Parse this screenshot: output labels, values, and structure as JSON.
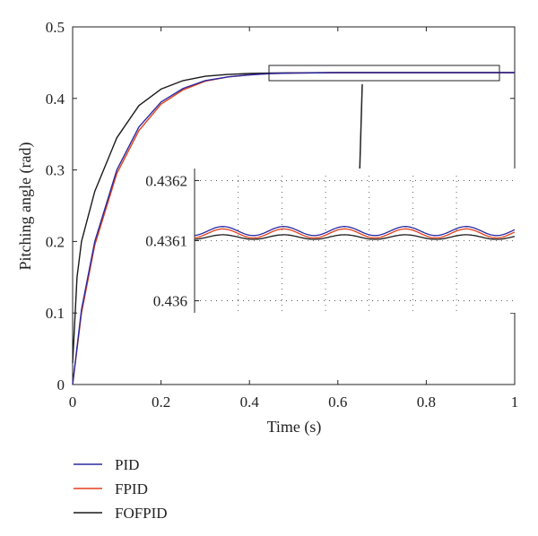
{
  "chart_data": {
    "type": "line",
    "xlabel": "Time (s)",
    "ylabel": "Pitching angle (rad)",
    "xlim": [
      0,
      1
    ],
    "ylim": [
      0,
      0.5
    ],
    "xticks": [
      "0",
      "0.2",
      "0.4",
      "0.6",
      "0.8",
      "1"
    ],
    "yticks": [
      "0",
      "0.1",
      "0.2",
      "0.3",
      "0.4",
      "0.5"
    ],
    "grid": false,
    "legend_position": "below the plot, left",
    "series": [
      {
        "name": "PID",
        "color": "#2a2aa0",
        "x": [
          0,
          0.02,
          0.05,
          0.1,
          0.15,
          0.2,
          0.25,
          0.3,
          0.35,
          0.4,
          0.45,
          0.5,
          0.6,
          0.7,
          0.8,
          0.9,
          1.0
        ],
        "y": [
          0,
          0.105,
          0.2,
          0.3,
          0.36,
          0.395,
          0.414,
          0.425,
          0.43,
          0.433,
          0.4348,
          0.4355,
          0.4361,
          0.4361,
          0.4361,
          0.4361,
          0.4361
        ]
      },
      {
        "name": "FPID",
        "color": "#e0401c",
        "x": [
          0,
          0.02,
          0.05,
          0.1,
          0.15,
          0.2,
          0.25,
          0.3,
          0.35,
          0.4,
          0.45,
          0.5,
          0.6,
          0.7,
          0.8,
          0.9,
          1.0
        ],
        "y": [
          0,
          0.1,
          0.195,
          0.295,
          0.355,
          0.392,
          0.412,
          0.424,
          0.43,
          0.433,
          0.4347,
          0.4355,
          0.4361,
          0.4361,
          0.4361,
          0.4361,
          0.4361
        ]
      },
      {
        "name": "FOFPID",
        "color": "#1a1a1a",
        "x": [
          0,
          0.01,
          0.02,
          0.05,
          0.1,
          0.15,
          0.2,
          0.25,
          0.3,
          0.35,
          0.4,
          0.45,
          0.5,
          0.6,
          0.7,
          0.8,
          0.9,
          1.0
        ],
        "y": [
          0.03,
          0.15,
          0.2,
          0.27,
          0.345,
          0.39,
          0.413,
          0.425,
          0.431,
          0.4335,
          0.4348,
          0.4355,
          0.4358,
          0.4361,
          0.4361,
          0.4361,
          0.4361,
          0.4361
        ]
      }
    ],
    "inset": {
      "yticks": [
        "0.4362",
        "0.4361",
        "0.436"
      ],
      "ylim": [
        0.43598,
        0.43622
      ],
      "xlim": [
        0.45,
        1.0
      ],
      "grid": true,
      "series": [
        {
          "name": "PID",
          "mean": 0.436116,
          "amplitude": 7.5e-06
        },
        {
          "name": "FPID",
          "mean": 0.436112,
          "amplitude": 7.5e-06
        },
        {
          "name": "FOFPID",
          "mean": 0.436106,
          "amplitude": 3.8e-06
        }
      ]
    }
  }
}
